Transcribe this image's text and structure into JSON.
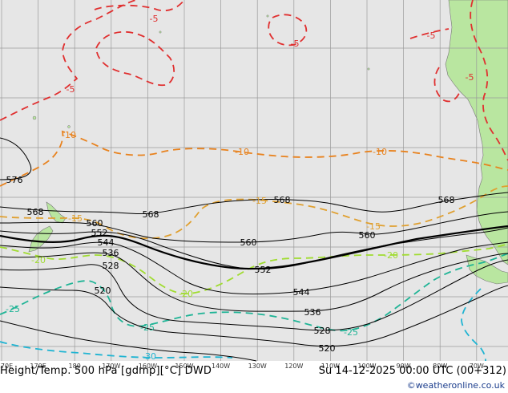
{
  "caption": {
    "left": "Height/Temp. 500 hPa [gdmp][°C] DWD",
    "right": "Su 14-12-2025 00:00 UTC (00+312)"
  },
  "credit": "©weatheronline.co.uk",
  "colors": {
    "ocean": "#e6e6e6",
    "land": "#b9e6a0",
    "grid": "#9a9a9a",
    "height": "#000000",
    "t_minus5": "#e03030",
    "t_minus10": "#e8821e",
    "t_minus15": "#e0a030",
    "t_minus20": "#a0dc30",
    "t_minus25": "#20b496",
    "t_minus30": "#20b4d2"
  },
  "longitudes": [
    "170E",
    "170E",
    "180",
    "170W",
    "160W",
    "150W",
    "140W",
    "130W",
    "120W",
    "110W",
    "100W",
    "90W",
    "80W",
    "70W"
  ],
  "height_labels": {
    "h576": "576",
    "h568a": "568",
    "h568b": "568",
    "h568c": "568",
    "h568d": "568",
    "h560a": "560",
    "h560b": "560",
    "h560c": "560",
    "h552a": "552",
    "h552b": "552",
    "h544a": "544",
    "h544b": "544",
    "h536a": "536",
    "h536b": "536",
    "h528a": "528",
    "h528b": "528",
    "h520a": "520",
    "h520b": "520"
  },
  "temp_labels": {
    "m5a": "-5",
    "m5b": "-5",
    "m5c": "-5",
    "m5d": "-5",
    "m5e": "-5",
    "m10a": "-10",
    "m10b": "-10",
    "m10c": "-10",
    "m15a": "-15",
    "m15b": "-15",
    "m15c": "-15",
    "m20a": "-20",
    "m20b": "-20",
    "m20c": "-20",
    "m25a": "-25",
    "m25b": "-25",
    "m25c": "-25",
    "m30a": "-30"
  }
}
